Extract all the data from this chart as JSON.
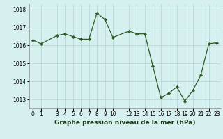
{
  "x": [
    0,
    1,
    3,
    4,
    5,
    6,
    7,
    8,
    9,
    10,
    12,
    13,
    14,
    15,
    16,
    17,
    18,
    19,
    20,
    21,
    22,
    23
  ],
  "y": [
    1016.3,
    1016.1,
    1016.55,
    1016.65,
    1016.5,
    1016.35,
    1016.35,
    1017.8,
    1017.45,
    1016.45,
    1016.8,
    1016.65,
    1016.65,
    1014.85,
    1013.1,
    1013.35,
    1013.7,
    1012.9,
    1013.5,
    1014.35,
    1016.1,
    1016.15
  ],
  "line_color": "#2d5a27",
  "marker": "D",
  "marker_size": 2.2,
  "bg_color": "#d6f0f0",
  "grid_color": "#b8d8d8",
  "title": "Graphe pression niveau de la mer (hPa)",
  "ylim": [
    1012.5,
    1018.3
  ],
  "yticks": [
    1013,
    1014,
    1015,
    1016,
    1017,
    1018
  ],
  "xticks": [
    0,
    1,
    3,
    4,
    5,
    6,
    7,
    8,
    9,
    10,
    12,
    13,
    14,
    15,
    16,
    17,
    18,
    19,
    20,
    21,
    22,
    23
  ],
  "xlim": [
    -0.5,
    23.5
  ],
  "title_fontsize": 6.5,
  "tick_fontsize": 5.5
}
